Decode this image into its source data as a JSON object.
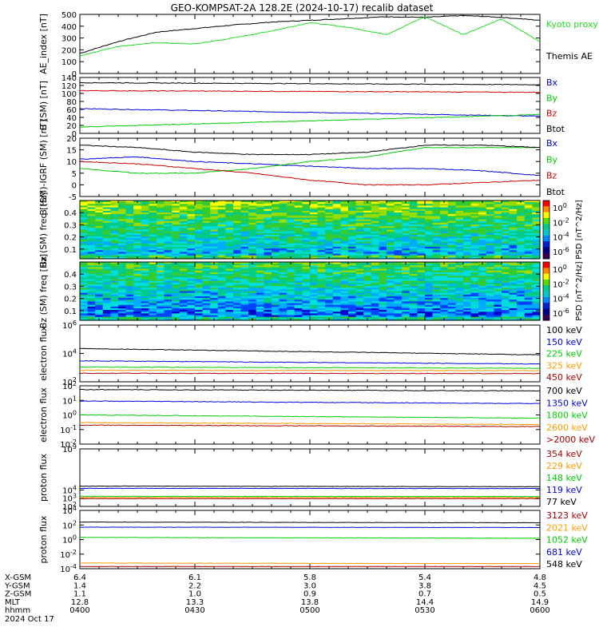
{
  "title": "GEO-KOMPSAT-2A 128.2E (2024-10-17) recalib dataset",
  "time": {
    "labels": [
      "0400",
      "0430",
      "0500",
      "0530",
      "0600"
    ],
    "start_hhmm": "0400",
    "end_hhmm": "0600"
  },
  "ephemeris": {
    "rows": [
      {
        "name": "X-GSM",
        "values": [
          "6.4",
          "6.1",
          "5.8",
          "5.4",
          "4.8"
        ]
      },
      {
        "name": "Y-GSM",
        "values": [
          "1.4",
          "2.2",
          "3.0",
          "3.8",
          "4.5"
        ]
      },
      {
        "name": "Z-GSM",
        "values": [
          "1.1",
          "1.0",
          "0.9",
          "0.7",
          "0.5"
        ]
      },
      {
        "name": "MLT",
        "values": [
          "12.8",
          "13.3",
          "13.8",
          "14.4",
          "14.9"
        ]
      },
      {
        "name": "hhmm",
        "values": [
          "0400",
          "0430",
          "0500",
          "0530",
          "0600"
        ]
      }
    ],
    "date": "2024 Oct 17"
  },
  "colors": {
    "black": "#000000",
    "blue": "#0000dd",
    "green": "#00cc00",
    "red": "#cc0000",
    "orange": "#ff9900",
    "darkred": "#aa0000",
    "bright_green": "#22dd22"
  },
  "chart_data": [
    {
      "type": "line",
      "ylabel": "AE_index [nT]",
      "ylim": [
        0,
        500
      ],
      "yscale": "linear",
      "yticks": [
        "0",
        "100",
        "200",
        "300",
        "400",
        "500"
      ],
      "series": [
        {
          "name": "Themis AE",
          "color": "#000000",
          "x": [
            "0400",
            "0410",
            "0420",
            "0430",
            "0440",
            "0450",
            "0500",
            "0510",
            "0520",
            "0530",
            "0540",
            "0550",
            "0600"
          ],
          "values": [
            170,
            270,
            350,
            380,
            410,
            435,
            450,
            465,
            480,
            475,
            490,
            475,
            450
          ]
        },
        {
          "name": "Kyoto proxy AE",
          "color": "#22dd22",
          "x": [
            "0400",
            "0410",
            "0420",
            "0430",
            "0440",
            "0450",
            "0500",
            "0510",
            "0520",
            "0530",
            "0540",
            "0550",
            "0600"
          ],
          "values": [
            150,
            230,
            260,
            250,
            300,
            360,
            430,
            390,
            330,
            480,
            330,
            460,
            270
          ]
        }
      ]
    },
    {
      "type": "line",
      "ylabel": "B (SM) [nT]",
      "ylim": [
        0,
        140
      ],
      "yscale": "linear",
      "yticks": [
        "0",
        "20",
        "40",
        "60",
        "80",
        "100",
        "120",
        "140"
      ],
      "series": [
        {
          "name": "Bx",
          "color": "#0000dd",
          "x": [
            "0400",
            "0600"
          ],
          "values": [
            62,
            43
          ]
        },
        {
          "name": "By",
          "color": "#00cc00",
          "x": [
            "0400",
            "0600"
          ],
          "values": [
            16,
            47
          ]
        },
        {
          "name": "Bz",
          "color": "#cc0000",
          "x": [
            "0400",
            "0600"
          ],
          "values": [
            107,
            103
          ]
        },
        {
          "name": "Btot",
          "color": "#000000",
          "x": [
            "0400",
            "0600"
          ],
          "values": [
            127,
            122
          ]
        }
      ]
    },
    {
      "type": "line",
      "ylabel": "B (SM)-IGRF (SM) [nT]",
      "ylim": [
        -5,
        20
      ],
      "yscale": "linear",
      "yticks": [
        "-5",
        "0",
        "5",
        "10",
        "15",
        "20"
      ],
      "series": [
        {
          "name": "Bx",
          "color": "#0000dd",
          "x": [
            "0400",
            "0415",
            "0430",
            "0445",
            "0500",
            "0515",
            "0530",
            "0545",
            "0600"
          ],
          "values": [
            11,
            12,
            10,
            9,
            8,
            7,
            7,
            6,
            4
          ]
        },
        {
          "name": "By",
          "color": "#00cc00",
          "x": [
            "0400",
            "0415",
            "0430",
            "0445",
            "0500",
            "0515",
            "0530",
            "0545",
            "0600"
          ],
          "values": [
            7,
            5,
            5,
            7,
            10,
            12,
            16,
            16,
            16
          ]
        },
        {
          "name": "Bz",
          "color": "#cc0000",
          "x": [
            "0400",
            "0415",
            "0430",
            "0445",
            "0500",
            "0515",
            "0530",
            "0545",
            "0600"
          ],
          "values": [
            10,
            9,
            7,
            5,
            2,
            0,
            0,
            1,
            2
          ]
        },
        {
          "name": "Btot",
          "color": "#000000",
          "x": [
            "0400",
            "0415",
            "0430",
            "0445",
            "0500",
            "0515",
            "0530",
            "0545",
            "0600"
          ],
          "values": [
            17,
            16,
            14,
            13,
            13,
            14,
            17,
            17,
            16
          ]
        }
      ]
    },
    {
      "type": "heatmap",
      "ylabel": "Bx (SM) freq [Hz]",
      "ylim": [
        0.02,
        0.5
      ],
      "yticks": [
        "0.1",
        "0.2",
        "0.3",
        "0.4"
      ],
      "colorbar": {
        "label": "PSD [nT^2/Hz]",
        "ticks": [
          "10^0",
          "10^-2",
          "10^-4",
          "10^-6"
        ]
      }
    },
    {
      "type": "heatmap",
      "ylabel": "Bz (SM) freq [Hz]",
      "ylim": [
        0.02,
        0.5
      ],
      "yticks": [
        "0.1",
        "0.2",
        "0.3",
        "0.4"
      ],
      "colorbar": {
        "label": "PSD [nT^2/Hz]",
        "ticks": [
          "10^0",
          "10^-2",
          "10^-4",
          "10^-6"
        ]
      }
    },
    {
      "type": "line",
      "ylabel": "electron flux",
      "yscale": "log",
      "ylim": [
        100,
        1000000
      ],
      "yticks": [
        "10^2",
        "10^4",
        "10^6"
      ],
      "series": [
        {
          "name": "100 keV",
          "color": "#000000",
          "x": [
            "0400",
            "0600"
          ],
          "values": [
            22000,
            8000
          ]
        },
        {
          "name": "150 keV",
          "color": "#0000dd",
          "x": [
            "0400",
            "0600"
          ],
          "values": [
            3000,
            1800
          ]
        },
        {
          "name": "225 keV",
          "color": "#00cc00",
          "x": [
            "0400",
            "0600"
          ],
          "values": [
            1100,
            900
          ]
        },
        {
          "name": "325 keV",
          "color": "#ff9900",
          "x": [
            "0400",
            "0600"
          ],
          "values": [
            650,
            620
          ]
        },
        {
          "name": "450 keV",
          "color": "#aa0000",
          "x": [
            "0400",
            "0600"
          ],
          "values": [
            400,
            380
          ]
        }
      ]
    },
    {
      "type": "line",
      "ylabel": "electron flux",
      "yscale": "log",
      "ylim": [
        0.01,
        100
      ],
      "yticks": [
        "10^-2",
        "10^-1",
        "10^0",
        "10^1",
        "10^2"
      ],
      "series": [
        {
          "name": "700 keV",
          "color": "#000000",
          "x": [
            "0400",
            "0600"
          ],
          "values": [
            55,
            45
          ]
        },
        {
          "name": "1350 keV",
          "color": "#0000dd",
          "x": [
            "0400",
            "0600"
          ],
          "values": [
            9,
            6
          ]
        },
        {
          "name": "1800 keV",
          "color": "#00cc00",
          "x": [
            "0400",
            "0600"
          ],
          "values": [
            1.0,
            0.6
          ]
        },
        {
          "name": "2600 keV",
          "color": "#ff9900",
          "x": [
            "0400",
            "0600"
          ],
          "values": [
            0.3,
            0.22
          ]
        },
        {
          "name": ">2000 keV",
          "color": "#aa0000",
          "x": [
            "0400",
            "0600"
          ],
          "values": [
            0.2,
            0.16
          ]
        }
      ]
    },
    {
      "type": "line",
      "ylabel": "proton flux",
      "yscale": "log",
      "ylim": [
        100,
        1000000000
      ],
      "yticks": [
        "10^2",
        "10^3",
        "10^4",
        "10^9"
      ],
      "series": [
        {
          "name": "354 keV",
          "color": "#aa0000",
          "x": [
            "0400",
            "0600"
          ],
          "values": [
            900,
            900
          ]
        },
        {
          "name": "229 keV",
          "color": "#ff9900",
          "x": [
            "0400",
            "0600"
          ],
          "values": [
            1200,
            1200
          ]
        },
        {
          "name": "148 keV",
          "color": "#00cc00",
          "x": [
            "0400",
            "0600"
          ],
          "values": [
            1700,
            1600
          ]
        },
        {
          "name": "119 keV",
          "color": "#0000dd",
          "x": [
            "0400",
            "0600"
          ],
          "values": [
            16000,
            15000
          ]
        },
        {
          "name": "77 keV",
          "color": "#000000",
          "x": [
            "0400",
            "0600"
          ],
          "values": [
            30000,
            25000
          ]
        }
      ]
    },
    {
      "type": "line",
      "ylabel": "proton flux",
      "yscale": "log",
      "ylim": [
        0.0001,
        10000
      ],
      "yticks": [
        "10^-4",
        "10^-2",
        "10^0",
        "10^2",
        "10^4"
      ],
      "series": [
        {
          "name": "3123 keV",
          "color": "#aa0000",
          "x": [
            "0400",
            "0600"
          ],
          "values": [
            0.0002,
            0.0002
          ]
        },
        {
          "name": "2021 keV",
          "color": "#ff9900",
          "x": [
            "0400",
            "0600"
          ],
          "values": [
            0.0006,
            0.0005
          ]
        },
        {
          "name": "1052 keV",
          "color": "#00cc00",
          "x": [
            "0400",
            "0600"
          ],
          "values": [
            2,
            1.5
          ]
        },
        {
          "name": "681 keV",
          "color": "#0000dd",
          "x": [
            "0400",
            "0600"
          ],
          "values": [
            50,
            45
          ]
        },
        {
          "name": "548 keV",
          "color": "#000000",
          "x": [
            "0400",
            "0600"
          ],
          "values": [
            250,
            200
          ]
        }
      ]
    }
  ]
}
